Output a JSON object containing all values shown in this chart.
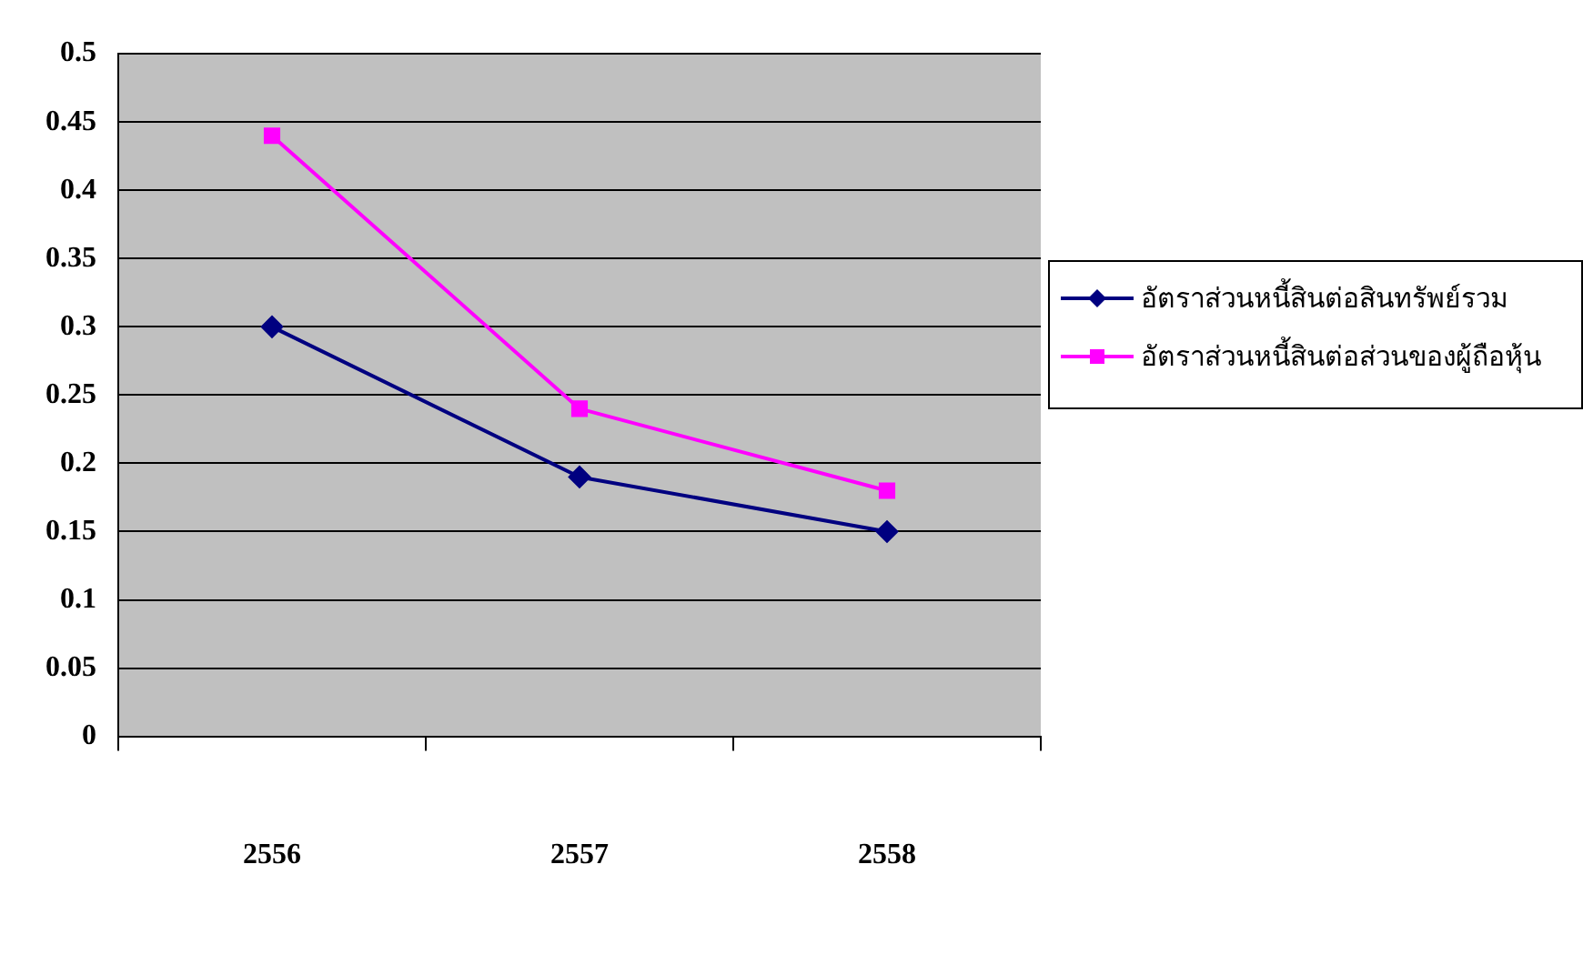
{
  "chart_data": {
    "type": "line",
    "categories": [
      "2556",
      "2557",
      "2558"
    ],
    "series": [
      {
        "name": "อัตราส่วนหนี้สินต่อสินทรัพย์รวม",
        "color": "#000080",
        "values": [
          0.3,
          0.19,
          0.15
        ],
        "marker": "diamond"
      },
      {
        "name": "อัตราส่วนหนี้สินต่อส่วนของผู้ถือหุ้น",
        "color": "#ff00ff",
        "values": [
          0.44,
          0.24,
          0.18
        ],
        "marker": "square"
      }
    ],
    "ylim": [
      0,
      0.5
    ],
    "yticks": [
      0,
      0.05,
      0.1,
      0.15,
      0.2,
      0.25,
      0.3,
      0.35,
      0.4,
      0.45,
      0.5
    ],
    "grid": "y",
    "legend": "right",
    "line_style": "solid"
  }
}
